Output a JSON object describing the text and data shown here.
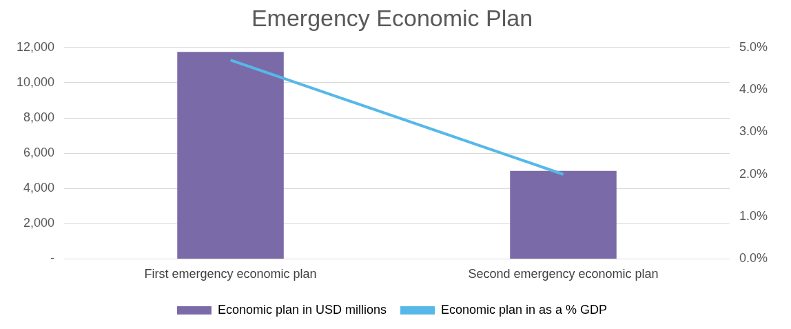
{
  "chart_data": {
    "type": "bar",
    "title": "Emergency Economic Plan",
    "categories": [
      "First emergency economic plan",
      "Second emergency economic plan"
    ],
    "series": [
      {
        "name": "Economic plan in USD millions",
        "color": "#7b6aa8",
        "values": [
          11750,
          5000
        ]
      },
      {
        "name": "Economic plan in as a % GDP",
        "type": "line",
        "axis": "y2",
        "color": "#56b8e8",
        "values": [
          4.7,
          2.0
        ]
      }
    ],
    "ylim": [
      0,
      12000
    ],
    "yticks": [
      {
        "value": 0,
        "label": "-"
      },
      {
        "value": 2000,
        "label": "2,000"
      },
      {
        "value": 4000,
        "label": "4,000"
      },
      {
        "value": 6000,
        "label": "6,000"
      },
      {
        "value": 8000,
        "label": "8,000"
      },
      {
        "value": 10000,
        "label": "10,000"
      },
      {
        "value": 12000,
        "label": "12,000"
      }
    ],
    "y2lim": [
      0,
      5
    ],
    "y2ticks": [
      {
        "value": 0,
        "label": "0.0%"
      },
      {
        "value": 1,
        "label": "1.0%"
      },
      {
        "value": 2,
        "label": "2.0%"
      },
      {
        "value": 3,
        "label": "3.0%"
      },
      {
        "value": 4,
        "label": "4.0%"
      },
      {
        "value": 5,
        "label": "5.0%"
      }
    ],
    "grid": "y",
    "legend": "bottom",
    "marker": "none"
  }
}
